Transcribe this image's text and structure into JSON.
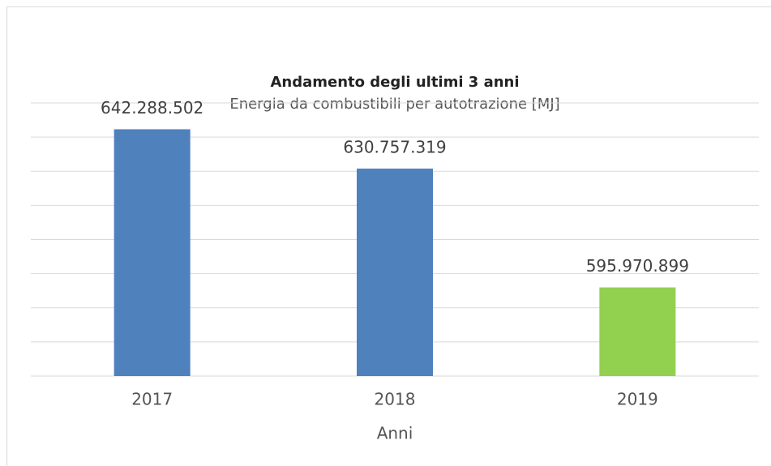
{
  "chart_data": {
    "type": "bar",
    "title": "Andamento degli ultimi 3 anni",
    "subtitle": "Energia da combustibili per autotrazione [MJ]",
    "x_label": "Anni",
    "categories": [
      "2017",
      "2018",
      "2019"
    ],
    "values": [
      642288502,
      630757319,
      595970899
    ],
    "value_labels": [
      "642.288.502",
      "630.757.319",
      "595.970.899"
    ],
    "colors": [
      "#4f81bd",
      "#4f81bd",
      "#92d050"
    ],
    "ylim": [
      570000000,
      650000000
    ],
    "yticks": [
      570000000,
      580000000,
      590000000,
      600000000,
      610000000,
      620000000,
      630000000,
      640000000,
      650000000
    ],
    "grid": true
  }
}
